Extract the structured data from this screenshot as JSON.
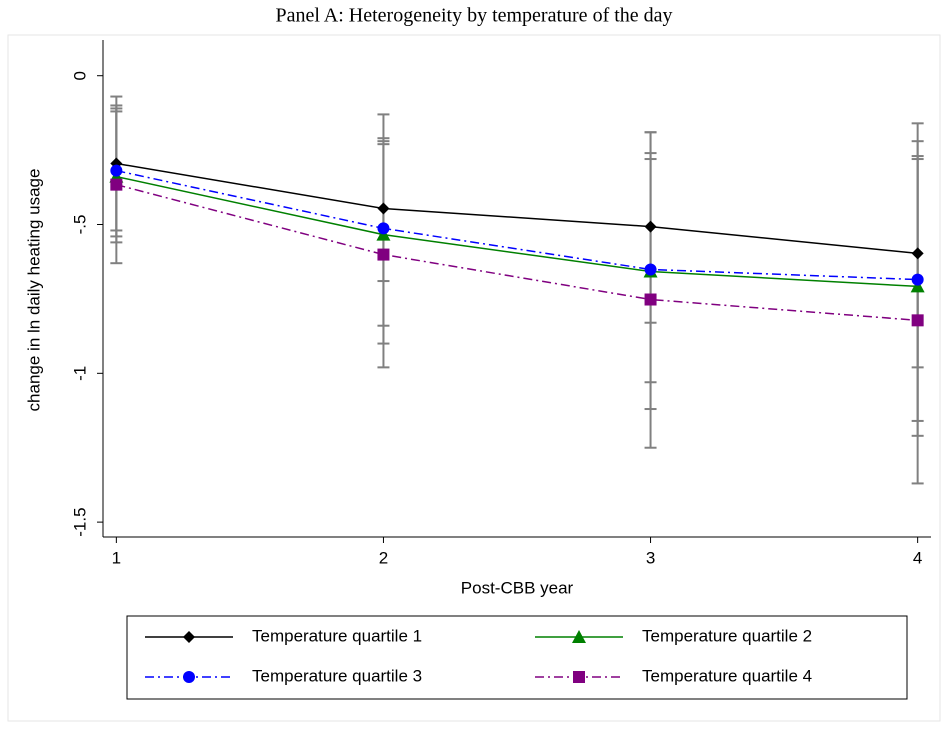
{
  "chart_data": {
    "type": "line",
    "title": "Panel A: Heterogeneity by temperature of the day",
    "x_label": "Post-CBB year",
    "y_label": "change in ln daily heating usage",
    "x": [
      1,
      2,
      3,
      4
    ],
    "xlim": [
      0.95,
      4.05
    ],
    "xticks": [
      1,
      2,
      3,
      4
    ],
    "ylim": [
      -1.55,
      0.12
    ],
    "yticks": [
      0,
      {
        "value": -0.5,
        "label": "-.5"
      },
      -1,
      {
        "value": -1.5,
        "label": "-1.5"
      }
    ],
    "error_color": "#808080",
    "series": [
      {
        "name": "Temperature quartile 1",
        "color": "#000000",
        "marker": "diamond",
        "dash": "solid",
        "values": [
          -0.295,
          -0.446,
          -0.507,
          -0.597
        ],
        "low": [
          -0.52,
          -0.69,
          -0.83,
          -0.98
        ],
        "high": [
          -0.07,
          -0.21,
          -0.19,
          -0.16
        ]
      },
      {
        "name": "Temperature quartile 2",
        "color": "#008000",
        "marker": "triangle",
        "dash": "solid",
        "values": [
          -0.339,
          -0.534,
          -0.658,
          -0.708
        ],
        "low": [
          -0.56,
          -0.84,
          -1.03,
          -1.16
        ],
        "high": [
          -0.11,
          -0.23,
          -0.28,
          -0.27
        ]
      },
      {
        "name": "Temperature quartile 3",
        "color": "#0000ff",
        "marker": "circle",
        "dash": "dashdot",
        "values": [
          -0.319,
          -0.513,
          -0.651,
          -0.685
        ],
        "low": [
          -0.54,
          -0.9,
          -1.12,
          -1.21
        ],
        "high": [
          -0.1,
          -0.13,
          -0.19,
          -0.22
        ]
      },
      {
        "name": "Temperature quartile 4",
        "color": "#800080",
        "marker": "square",
        "dash": "dashdot",
        "values": [
          -0.366,
          -0.601,
          -0.752,
          -0.822
        ],
        "low": [
          -0.63,
          -0.98,
          -1.25,
          -1.37
        ],
        "high": [
          -0.12,
          -0.22,
          -0.26,
          -0.28
        ]
      }
    ]
  }
}
